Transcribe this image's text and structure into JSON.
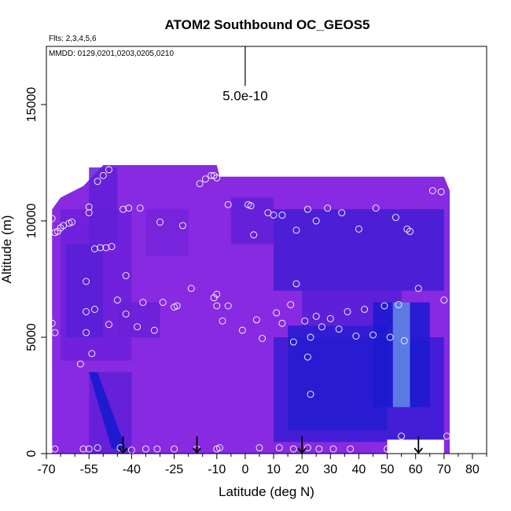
{
  "chart_data": {
    "type": "heatmap",
    "title": "ATOM2 Southbound OC_GEOS5",
    "flights_note": "Flts: 2,3,4,5,6",
    "dates_note": "MMDD: 0129,0201,0203,0205,0210",
    "xlabel": "Latitude (deg N)",
    "ylabel": "Altitude (m)",
    "xlim": [
      -70,
      85
    ],
    "ylim": [
      0,
      17500
    ],
    "x_ticks": [
      -70,
      -55,
      -40,
      -25,
      -10,
      0,
      10,
      20,
      30,
      40,
      50,
      60,
      70,
      80
    ],
    "x_tick_labels": [
      "-70",
      "-55",
      "-40",
      "-25",
      "-10",
      "0",
      "10",
      "20",
      "30",
      "40",
      "50",
      "60",
      "70",
      "80"
    ],
    "x_minor_ticks": [
      -65,
      -60,
      -50,
      -45,
      -35,
      -30,
      -20,
      -15,
      -5,
      5,
      15,
      25,
      35,
      45,
      55,
      65,
      75,
      85
    ],
    "y_ticks": [
      0,
      5000,
      10000,
      15000
    ],
    "y_tick_labels": [
      "0",
      "5000",
      "10000",
      "15000"
    ],
    "scale_bar": {
      "label": "5.0e-10",
      "x": 0,
      "y_bottom": 15800,
      "y_top": 17500
    },
    "colors": {
      "background_purple": "#8a2be2",
      "mid_purple": "#6a1fd8",
      "dark_blue": "#1a1ad0",
      "light_blue": "#7aa8ee",
      "marker_edge": "#ffffff"
    },
    "cells": [
      {
        "x0": -65,
        "x1": -40,
        "y0": 4000,
        "y1": 10500,
        "v": 0.45
      },
      {
        "x0": -63,
        "x1": -50,
        "y0": 5000,
        "y1": 9000,
        "v": 0.6
      },
      {
        "x0": -55,
        "x1": -45,
        "y0": 9000,
        "y1": 12300,
        "v": 0.55
      },
      {
        "x0": -35,
        "x1": -20,
        "y0": 8500,
        "y1": 10500,
        "v": 0.35
      },
      {
        "x0": -45,
        "x1": -30,
        "y0": 5000,
        "y1": 6500,
        "v": 0.5
      },
      {
        "x0": -5,
        "x1": 10,
        "y0": 9000,
        "y1": 11000,
        "v": 0.55
      },
      {
        "x0": 10,
        "x1": 70,
        "y0": 7000,
        "y1": 10500,
        "v": 0.7
      },
      {
        "x0": 20,
        "x1": 55,
        "y0": 5500,
        "y1": 7000,
        "v": 0.6
      },
      {
        "x0": 10,
        "x1": 70,
        "y0": 500,
        "y1": 5000,
        "v": 0.75
      },
      {
        "x0": 15,
        "x1": 50,
        "y0": 1000,
        "y1": 5500,
        "v": 0.85
      },
      {
        "x0": 45,
        "x1": 65,
        "y0": 2000,
        "y1": 6500,
        "v": 0.9
      },
      {
        "x0": 52,
        "x1": 58,
        "y0": 2000,
        "y1": 6500,
        "v": 0.98
      },
      {
        "x0": -55,
        "x1": -40,
        "y0": 0,
        "y1": 3500,
        "v": 0.55
      }
    ],
    "streaks": [
      {
        "x": -55,
        "y0": 3500,
        "y1": 1500,
        "x_end": -45,
        "y_end": 200
      }
    ],
    "points": [
      {
        "x": -68,
        "y": 10100
      },
      {
        "x": -67,
        "y": 9500
      },
      {
        "x": -66,
        "y": 9550
      },
      {
        "x": -65,
        "y": 9700
      },
      {
        "x": -64,
        "y": 9800
      },
      {
        "x": -62,
        "y": 9900
      },
      {
        "x": -61,
        "y": 9950
      },
      {
        "x": -55,
        "y": 10600
      },
      {
        "x": -55,
        "y": 10350
      },
      {
        "x": -52,
        "y": 11700
      },
      {
        "x": -50,
        "y": 11950
      },
      {
        "x": -48,
        "y": 12200
      },
      {
        "x": -53,
        "y": 8800
      },
      {
        "x": -51,
        "y": 8850
      },
      {
        "x": -49,
        "y": 8850
      },
      {
        "x": -47,
        "y": 8900
      },
      {
        "x": -43,
        "y": 10500
      },
      {
        "x": -41,
        "y": 10550
      },
      {
        "x": -37,
        "y": 10550
      },
      {
        "x": -30,
        "y": 9950
      },
      {
        "x": -22,
        "y": 9800
      },
      {
        "x": -16,
        "y": 11600
      },
      {
        "x": -14,
        "y": 11800
      },
      {
        "x": -12,
        "y": 11950
      },
      {
        "x": -11,
        "y": 11950
      },
      {
        "x": -10,
        "y": 11850
      },
      {
        "x": -6,
        "y": 10700
      },
      {
        "x": 1,
        "y": 10700
      },
      {
        "x": 2,
        "y": 10650
      },
      {
        "x": 3,
        "y": 9400
      },
      {
        "x": 8,
        "y": 10350
      },
      {
        "x": 10,
        "y": 10250
      },
      {
        "x": 13,
        "y": 10250
      },
      {
        "x": 18,
        "y": 9600
      },
      {
        "x": 22,
        "y": 10500
      },
      {
        "x": 25,
        "y": 10000
      },
      {
        "x": 29,
        "y": 10550
      },
      {
        "x": 34,
        "y": 10350
      },
      {
        "x": 40,
        "y": 9650
      },
      {
        "x": 46,
        "y": 10550
      },
      {
        "x": 53,
        "y": 10150
      },
      {
        "x": 57,
        "y": 9650
      },
      {
        "x": 58,
        "y": 9550
      },
      {
        "x": 66,
        "y": 11300
      },
      {
        "x": 69,
        "y": 11250
      },
      {
        "x": -42,
        "y": 7650
      },
      {
        "x": -56,
        "y": 7400
      },
      {
        "x": -68,
        "y": 5600
      },
      {
        "x": -67,
        "y": 5200
      },
      {
        "x": -56,
        "y": 6100
      },
      {
        "x": -53,
        "y": 6200
      },
      {
        "x": -45,
        "y": 6600
      },
      {
        "x": -42,
        "y": 6000
      },
      {
        "x": -36,
        "y": 6500
      },
      {
        "x": -29,
        "y": 6500
      },
      {
        "x": -25,
        "y": 6300
      },
      {
        "x": -24,
        "y": 6350
      },
      {
        "x": -19,
        "y": 7100
      },
      {
        "x": -11,
        "y": 6700
      },
      {
        "x": -10,
        "y": 6850
      },
      {
        "x": -10,
        "y": 6350
      },
      {
        "x": -6,
        "y": 6350
      },
      {
        "x": -8,
        "y": 5700
      },
      {
        "x": -1,
        "y": 5300
      },
      {
        "x": 4,
        "y": 5750
      },
      {
        "x": 6,
        "y": 4950
      },
      {
        "x": 11,
        "y": 6050
      },
      {
        "x": 13,
        "y": 5600
      },
      {
        "x": 16,
        "y": 6400
      },
      {
        "x": 18,
        "y": 7300
      },
      {
        "x": 17,
        "y": 4800
      },
      {
        "x": 21,
        "y": 5700
      },
      {
        "x": 23,
        "y": 5000
      },
      {
        "x": 25,
        "y": 5900
      },
      {
        "x": 27,
        "y": 5450
      },
      {
        "x": 30,
        "y": 5800
      },
      {
        "x": 33,
        "y": 5350
      },
      {
        "x": 36,
        "y": 6100
      },
      {
        "x": 39,
        "y": 5050
      },
      {
        "x": 42,
        "y": 6200
      },
      {
        "x": 45,
        "y": 5100
      },
      {
        "x": 49,
        "y": 6350
      },
      {
        "x": 51,
        "y": 5000
      },
      {
        "x": 54,
        "y": 6400
      },
      {
        "x": 56,
        "y": 4850
      },
      {
        "x": 61,
        "y": 7100
      },
      {
        "x": 70,
        "y": 6600
      },
      {
        "x": 22,
        "y": 4150
      },
      {
        "x": 23,
        "y": 2550
      },
      {
        "x": -48,
        "y": 5550
      },
      {
        "x": -38,
        "y": 5450
      },
      {
        "x": -32,
        "y": 5300
      },
      {
        "x": -56,
        "y": 5200
      },
      {
        "x": -54,
        "y": 4300
      },
      {
        "x": -58,
        "y": 3850
      },
      {
        "x": -67,
        "y": 200
      },
      {
        "x": -57,
        "y": 200
      },
      {
        "x": -55,
        "y": 200
      },
      {
        "x": -52,
        "y": 250
      },
      {
        "x": -44,
        "y": 250
      },
      {
        "x": -40,
        "y": 150
      },
      {
        "x": -35,
        "y": 200
      },
      {
        "x": -31,
        "y": 200
      },
      {
        "x": -25,
        "y": 200
      },
      {
        "x": -17,
        "y": 200
      },
      {
        "x": -10,
        "y": 200
      },
      {
        "x": -9,
        "y": 250
      },
      {
        "x": 5,
        "y": 250
      },
      {
        "x": 12,
        "y": 250
      },
      {
        "x": 17,
        "y": 200
      },
      {
        "x": 22,
        "y": 250
      },
      {
        "x": 26,
        "y": 200
      },
      {
        "x": 31,
        "y": 200
      },
      {
        "x": 37,
        "y": 200
      },
      {
        "x": 50,
        "y": 200
      },
      {
        "x": 55,
        "y": 750
      },
      {
        "x": 71,
        "y": 750
      }
    ],
    "arrows": [
      {
        "x": -43
      },
      {
        "x": -17
      },
      {
        "x": 20
      },
      {
        "x": 61
      }
    ]
  }
}
